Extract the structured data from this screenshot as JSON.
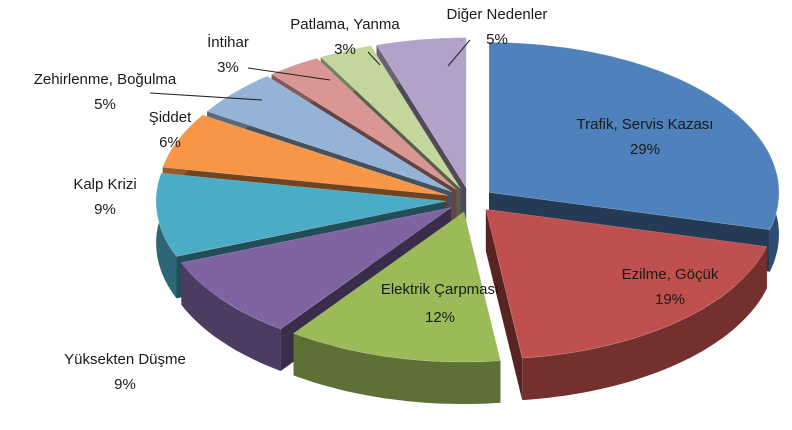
{
  "chart_data": {
    "type": "pie3d",
    "categories": [
      "Trafik, Servis Kazası",
      "Ezilme, Göçük",
      "Elektrik Çarpması",
      "Yüksekten Düşme",
      "Kalp Krizi",
      "Şiddet",
      "Zehirlenme, Boğulma",
      "İntihar",
      "Patlama, Yanma",
      "Diğer Nedenler"
    ],
    "values": [
      29,
      19,
      12,
      9,
      9,
      6,
      5,
      3,
      3,
      5
    ],
    "value_labels": [
      "29%",
      "19%",
      "12%",
      "9%",
      "9%",
      "6%",
      "5%",
      "3%",
      "3%",
      "5%"
    ],
    "colors": [
      "#4f81bd",
      "#c0504d",
      "#9bbb59",
      "#8064a2",
      "#4bacc6",
      "#f79646",
      "#95b3d7",
      "#d99694",
      "#c3d69b",
      "#b3a2c7"
    ]
  }
}
